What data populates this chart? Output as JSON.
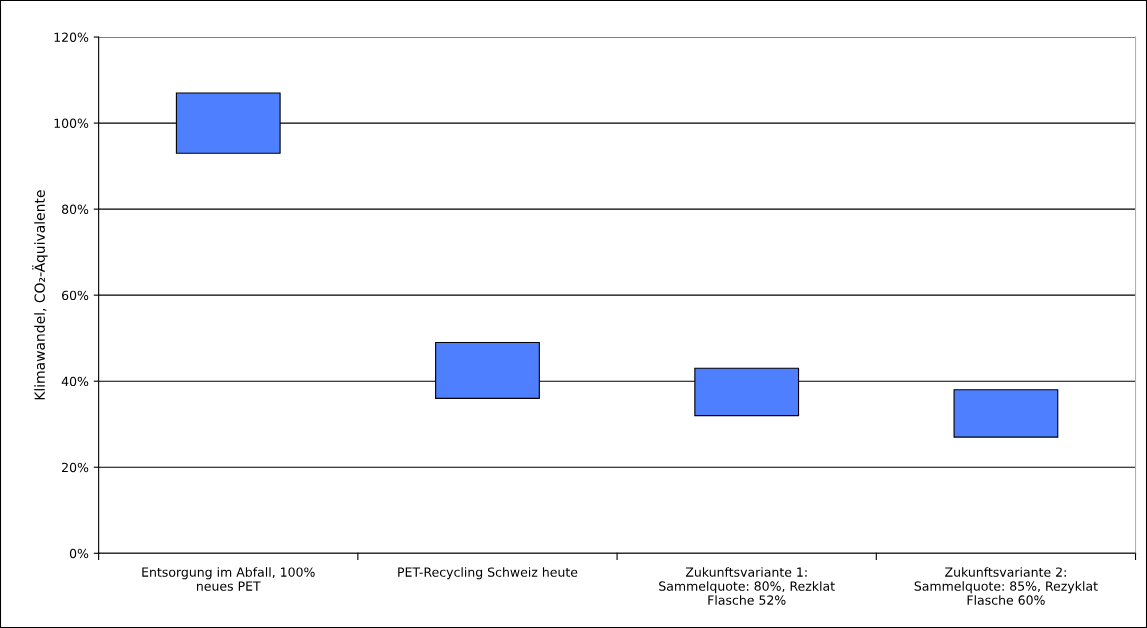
{
  "chart_data": {
    "type": "bar",
    "ylabel": "Klimawandel, CO₂-Äquivalente",
    "categories": [
      "Entsorgung im Abfall, 100%\nneues PET",
      "PET-Recycling Schweiz heute",
      "Zukunftsvariante 1:\nSammelquote: 80%, Rezklat\nFlasche 52%",
      "Zukunftsvariante 2:\nSammelquote: 85%, Rezyklat\nFlasche 60%"
    ],
    "base": [
      93,
      36,
      32,
      27
    ],
    "values": [
      14,
      13,
      11,
      11
    ],
    "color": "#4d7fff",
    "ylim": [
      0,
      120
    ],
    "yticks": [
      {
        "value": 0,
        "label": "0%"
      },
      {
        "value": 20,
        "label": "20%"
      },
      {
        "value": 40,
        "label": "40%"
      },
      {
        "value": 60,
        "label": "60%"
      },
      {
        "value": 80,
        "label": "80%"
      },
      {
        "value": 100,
        "label": "100%"
      },
      {
        "value": 120,
        "label": "120%"
      }
    ],
    "grid": "y"
  }
}
